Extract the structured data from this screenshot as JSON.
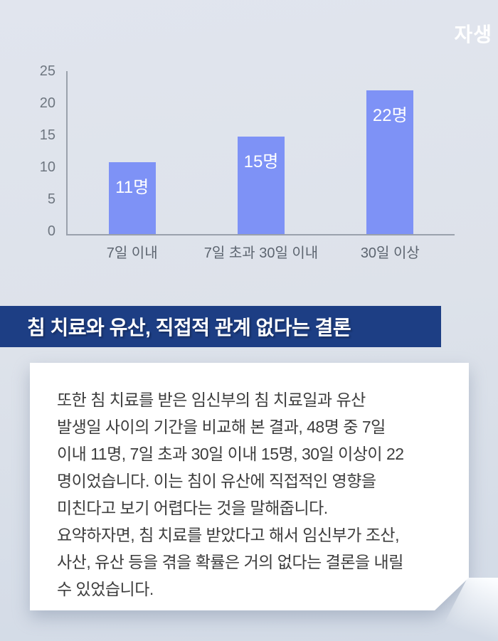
{
  "logo": {
    "text": "자생",
    "color": "#ffffff"
  },
  "chart_data": {
    "type": "bar",
    "title": "",
    "xlabel": "",
    "ylabel": "",
    "categories": [
      "7일 이내",
      "7일 초과 30일 이내",
      "30일 이상"
    ],
    "values": [
      11,
      15,
      22
    ],
    "value_labels": [
      "11명",
      "15명",
      "22명"
    ],
    "unit": "명",
    "ylim": [
      0,
      25
    ],
    "yticks": [
      0,
      5,
      10,
      15,
      20,
      25
    ],
    "ytick_labels": [
      "25",
      "20",
      "15",
      "10",
      "5",
      "0"
    ],
    "bar_color": "#7e92f6",
    "grid": false,
    "legend": false
  },
  "headline": {
    "text": "침 치료와 유산, 직접적 관계 없다는 결론",
    "background": "#1d3e84",
    "color": "#ffffff"
  },
  "body": {
    "text": "또한 침 치료를 받은 임신부의 침 치료일과 유산\n발생일 사이의 기간을 비교해 본 결과, 48명 중 7일\n이내 11명, 7일 초과 30일 이내 15명, 30일 이상이 22\n명이었습니다. 이는 침이 유산에 직접적인 영향을\n미친다고 보기 어렵다는 것을 말해줍니다.\n요약하자면, 침 치료를 받았다고 해서 임신부가 조산,\n사산, 유산 등을 겪을 확률은 거의 없다는 결론을 내릴\n수 있었습니다."
  },
  "colors": {
    "background_top": "#e1e5ee",
    "background_bottom": "#d2dae6",
    "card_background": "#ffffff",
    "axis_line": "#9aa1ac",
    "tick_text": "#6e7680",
    "category_text": "#5d6570",
    "body_text": "#3d3d3d"
  }
}
